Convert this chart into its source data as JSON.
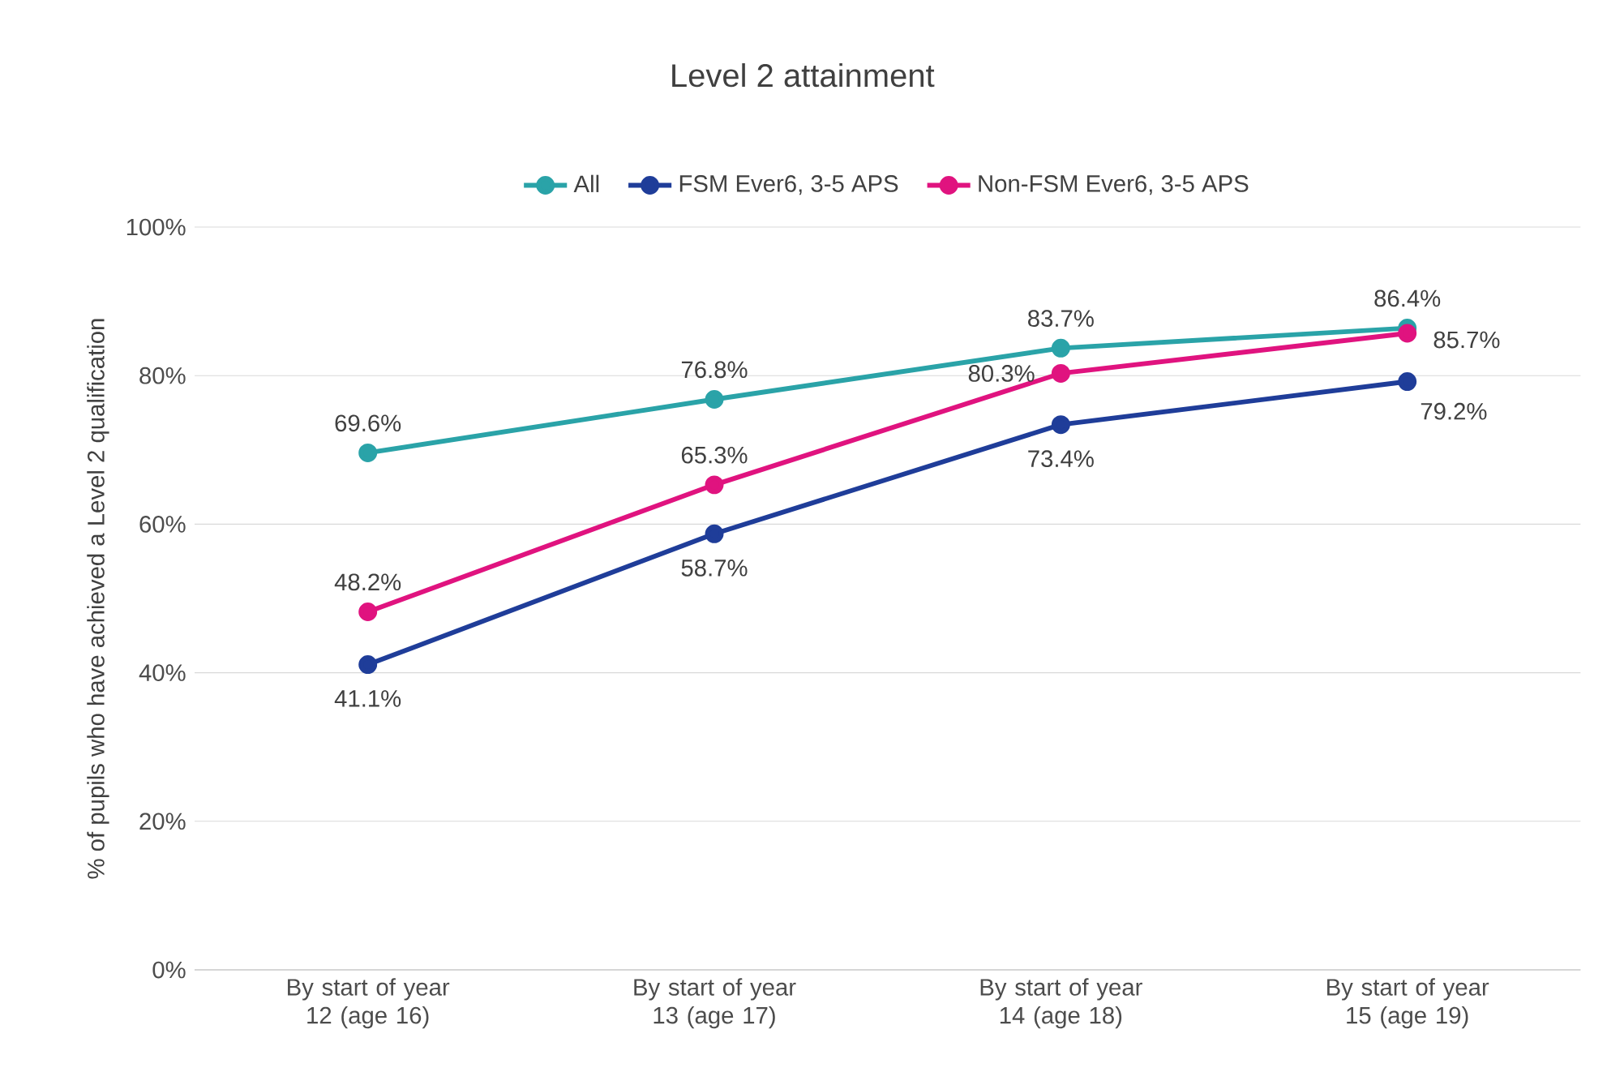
{
  "chart_data": {
    "type": "line",
    "title": "Level 2 attainment",
    "ylabel": "% of pupils who have achieved a Level 2 qualification",
    "categories": [
      "By start of year 12 (age 16)",
      "By start of year 13 (age 17)",
      "By start of year 14 (age 18)",
      "By start of year 15 (age 19)"
    ],
    "series": [
      {
        "name": "All",
        "color": "#2aa3a8",
        "values": [
          69.6,
          76.8,
          83.7,
          86.4
        ],
        "value_labels": [
          "69.6%",
          "76.8%",
          "83.7%",
          "86.4%"
        ]
      },
      {
        "name": "FSM Ever6, 3-5 APS",
        "color": "#1f3d99",
        "values": [
          41.1,
          58.7,
          73.4,
          79.2
        ],
        "value_labels": [
          "41.1%",
          "58.7%",
          "73.4%",
          "79.2%"
        ]
      },
      {
        "name": "Non-FSM Ever6, 3-5 APS",
        "color": "#e0137f",
        "values": [
          48.2,
          65.3,
          80.3,
          85.7
        ],
        "value_labels": [
          "48.2%",
          "65.3%",
          "80.3%",
          "85.7%"
        ]
      }
    ],
    "ylim": [
      0,
      100
    ],
    "yticks": [
      {
        "value": 0,
        "label": "0%"
      },
      {
        "value": 20,
        "label": "20%"
      },
      {
        "value": 40,
        "label": "40%"
      },
      {
        "value": 60,
        "label": "60%"
      },
      {
        "value": 80,
        "label": "80%"
      },
      {
        "value": 100,
        "label": "100%"
      }
    ],
    "grid": "y",
    "legend": "top",
    "marker": "circle",
    "line_style": "solid"
  }
}
